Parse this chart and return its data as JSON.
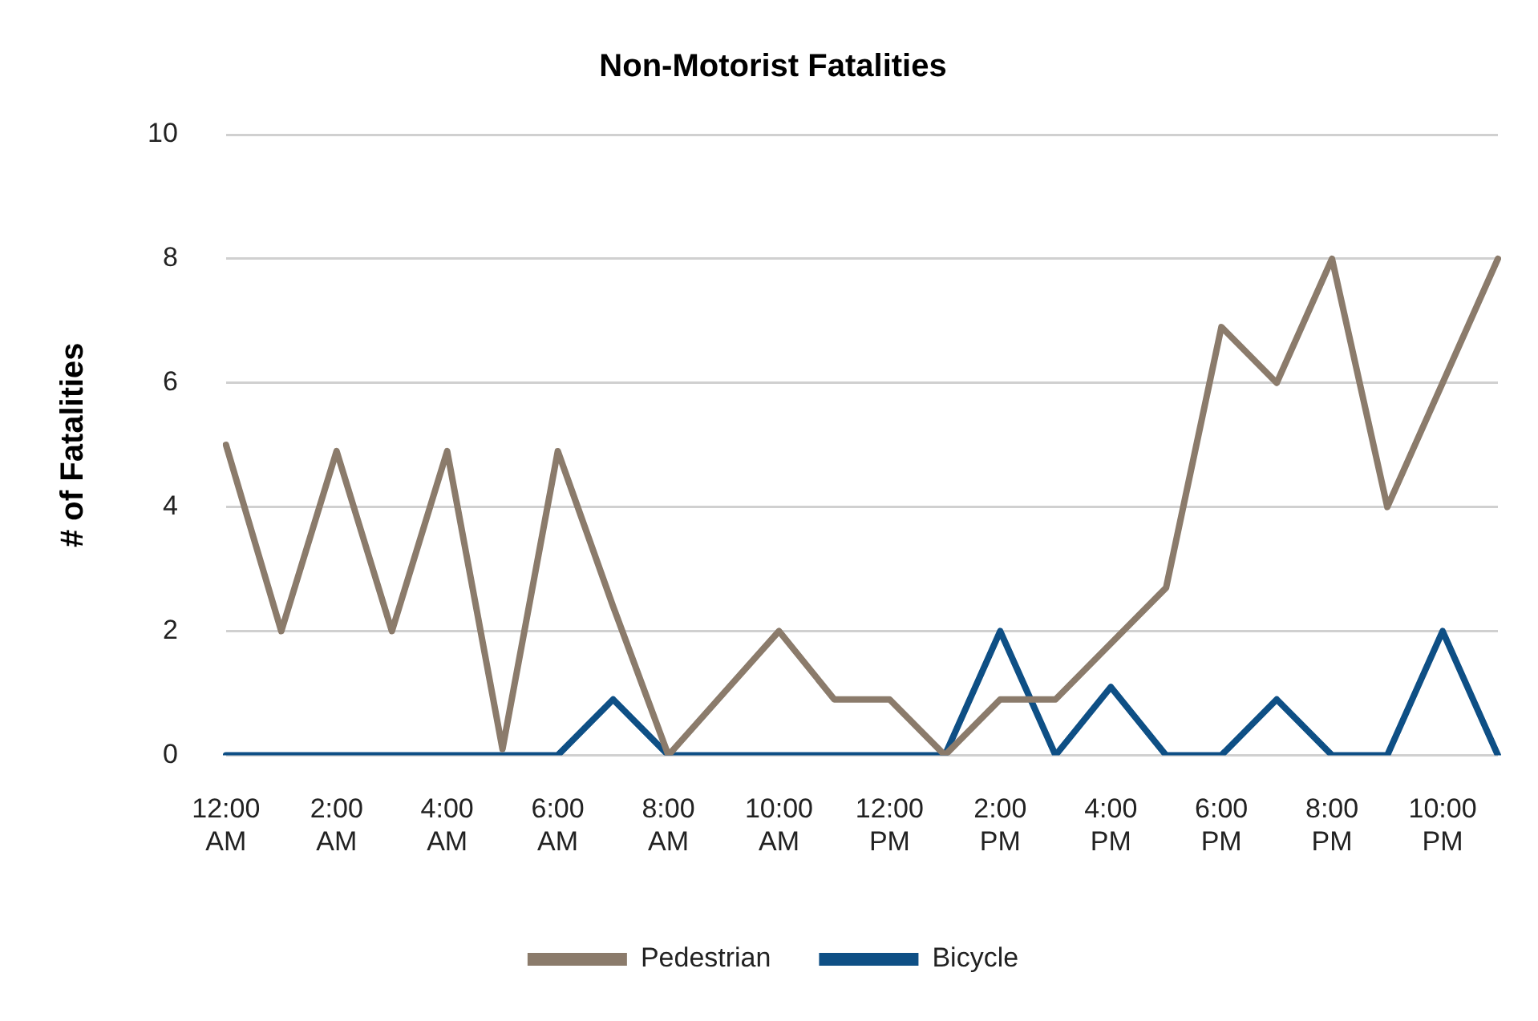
{
  "chart_data": {
    "type": "line",
    "title": "Non-Motorist Fatalities",
    "ylabel": "# of Fatalities",
    "categories": [
      "12:00 AM",
      null,
      "2:00 AM",
      null,
      "4:00 AM",
      null,
      "6:00 AM",
      null,
      "8:00 AM",
      null,
      "10:00 AM",
      null,
      "12:00 PM",
      null,
      "2:00 PM",
      null,
      "4:00 PM",
      null,
      "6:00 PM",
      null,
      "8:00 PM",
      null,
      "10:00 PM",
      null
    ],
    "series": [
      {
        "name": "Pedestrian",
        "color": "#8b7b6b",
        "values": [
          5,
          2,
          4.9,
          2,
          4.9,
          0.1,
          4.9,
          2.4,
          0,
          1,
          2,
          0.9,
          0.9,
          0,
          0.9,
          0.9,
          1.8,
          2.7,
          6.9,
          6,
          8,
          4,
          6,
          8
        ]
      },
      {
        "name": "Bicycle",
        "color": "#0e4f85",
        "values": [
          0,
          0,
          0,
          0,
          0,
          0,
          0,
          0.9,
          0,
          0,
          0,
          0,
          0,
          0,
          2,
          0,
          1.1,
          0,
          0,
          0.9,
          0,
          0,
          2,
          0
        ]
      }
    ],
    "ylim": [
      0,
      10
    ],
    "yticks": [
      0,
      2,
      4,
      6,
      8,
      10
    ],
    "grid": "y",
    "legend": "bottom",
    "marker": "none",
    "line_style": "solid"
  }
}
